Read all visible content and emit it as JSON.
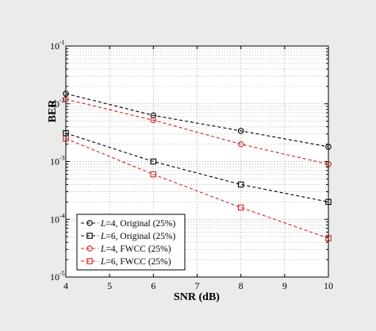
{
  "chart_data": {
    "type": "line",
    "xlabel": "SNR (dB)",
    "ylabel": "BER",
    "xlim": [
      4,
      10
    ],
    "ylim": [
      1e-05,
      0.1
    ],
    "yscale": "log",
    "grid": true,
    "legend_position": "bottom-left",
    "x_ticks": [
      "4",
      "5",
      "6",
      "7",
      "8",
      "9",
      "10"
    ],
    "y_ticks": [
      {
        "base": "10",
        "exp": "-1",
        "value": 0.1
      },
      {
        "base": "10",
        "exp": "-2",
        "value": 0.01
      },
      {
        "base": "10",
        "exp": "-3",
        "value": 0.001
      },
      {
        "base": "10",
        "exp": "-4",
        "value": 0.0001
      },
      {
        "base": "10",
        "exp": "-5",
        "value": 1e-05
      }
    ],
    "series": [
      {
        "name_prefix": "L",
        "name_suffix": "=4, Original (25%)",
        "marker": "circle",
        "color": "#000000",
        "dash": "dashed",
        "x": [
          4,
          6,
          8,
          10
        ],
        "values": [
          0.015,
          0.0063,
          0.0034,
          0.0018
        ]
      },
      {
        "name_prefix": "L",
        "name_suffix": "=6, Original (25%)",
        "marker": "square",
        "color": "#000000",
        "dash": "dashed",
        "x": [
          4,
          6,
          8,
          10
        ],
        "values": [
          0.0031,
          0.001,
          0.0004,
          0.0002
        ]
      },
      {
        "name_prefix": "L",
        "name_suffix": "=4, FWCC (25%)",
        "marker": "circle",
        "color": "#d42020",
        "dash": "dashed",
        "x": [
          4,
          6,
          8,
          10
        ],
        "values": [
          0.012,
          0.0052,
          0.002,
          0.0009
        ]
      },
      {
        "name_prefix": "L",
        "name_suffix": "=6, FWCC (25%)",
        "marker": "square",
        "color": "#d42020",
        "dash": "dashed",
        "x": [
          4,
          6,
          8,
          10
        ],
        "values": [
          0.0025,
          0.0006,
          0.00016,
          4.7e-05
        ]
      }
    ]
  }
}
